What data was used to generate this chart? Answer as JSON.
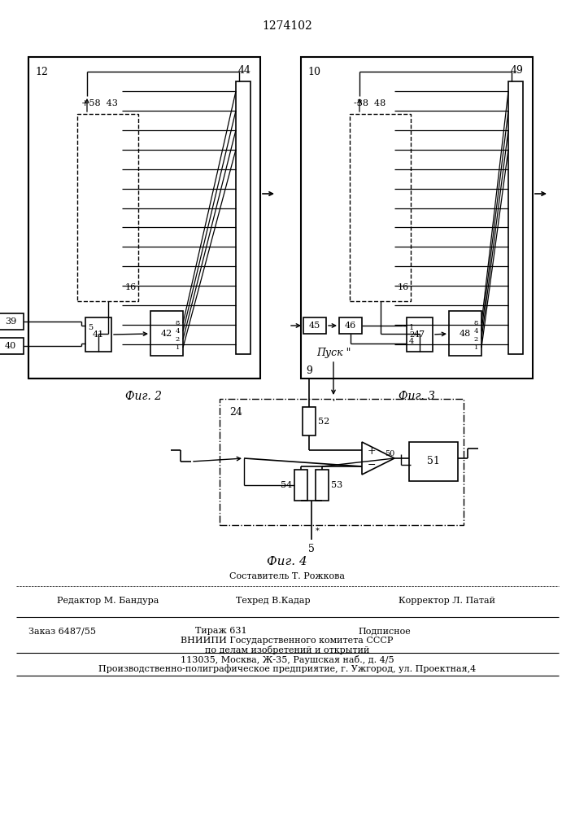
{
  "title": "1274102",
  "fig2_label": "Фиг. 2",
  "fig3_label": "Фиг. 3",
  "fig4_label": "Фиг. 4",
  "footer_line1": "Составитель Т. Рожкова",
  "footer_line2_left": "Редактор М. Бандура",
  "footer_line2_mid": "Техред В.Кадар",
  "footer_line2_right": "Корректор Л. Патай",
  "footer_line3_left": "Заказ 6487/55",
  "footer_line3_mid": "Тираж 631",
  "footer_line3_right": "Подписное",
  "footer_line4": "ВНИИПИ Государственного комитета СССР",
  "footer_line5": "по делам изобретений и открытий",
  "footer_line6": "113035, Москва, Ж-35, Раушская наб., д. 4/5",
  "footer_line7": "Производственно-полиграфическое предприятие, г. Ужгород, ул. Проектная,4",
  "bg_color": "#ffffff",
  "line_color": "#000000"
}
